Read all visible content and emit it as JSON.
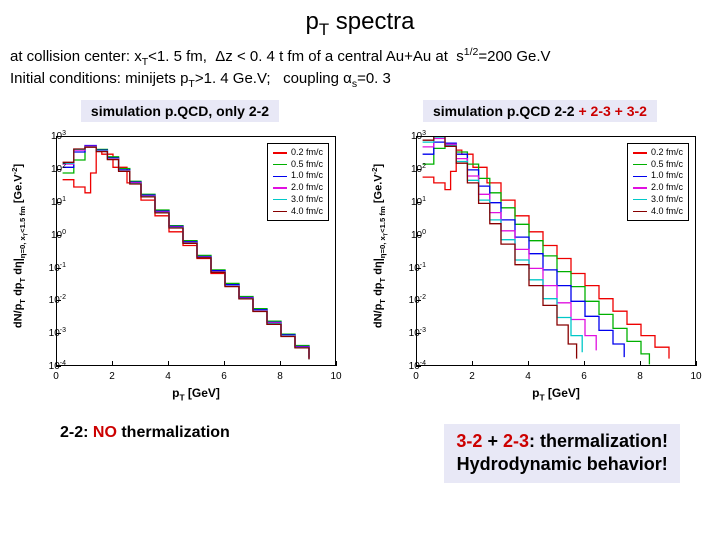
{
  "title_pre": "p",
  "title_sub": "T",
  "title_post": " spectra",
  "subtitle_line1": "at collision center: x_T<1. 5 fm,  Δz < 0. 4 t fm of a central Au+Au at  s^1/2=200 Ge.V",
  "subtitle_line2": "Initial conditions: minijets p_T>1. 4 Ge.V;   coupling α_s=0. 3",
  "left_chart": {
    "heading": "simulation p.QCD, only 2-2",
    "ylabel": "dN/p_T dp_T dη|_{η=0, x_T<1.5 fm} [Ge.V^{-2}]",
    "xlabel": "p_T [GeV]",
    "xlim": [
      0,
      10
    ],
    "ylim_exp": [
      -4,
      3
    ],
    "xticks": [
      0,
      2,
      4,
      6,
      8,
      10
    ],
    "yticks_exp": [
      -4,
      -3,
      -2,
      -1,
      0,
      1,
      2,
      3
    ],
    "legend": [
      {
        "label": "0.2 fm/c",
        "color": "#ee0000"
      },
      {
        "label": "0.5 fm/c",
        "color": "#00b000"
      },
      {
        "label": "1.0 fm/c",
        "color": "#0000ee"
      },
      {
        "label": "2.0 fm/c",
        "color": "#e010e0"
      },
      {
        "label": "3.0 fm/c",
        "color": "#00c8c8"
      },
      {
        "label": "4.0 fm/c",
        "color": "#880000"
      }
    ],
    "series": [
      {
        "color": "#ee0000",
        "points": [
          [
            0.2,
            50
          ],
          [
            0.6,
            30
          ],
          [
            1.0,
            20
          ],
          [
            1.2,
            80
          ],
          [
            1.4,
            400
          ],
          [
            1.6,
            300
          ],
          [
            2.0,
            120
          ],
          [
            2.5,
            40
          ],
          [
            3.0,
            12
          ],
          [
            3.5,
            4
          ],
          [
            4.0,
            1.3
          ],
          [
            4.5,
            0.5
          ],
          [
            5.0,
            0.2
          ],
          [
            5.5,
            0.07
          ],
          [
            6.0,
            0.03
          ],
          [
            6.5,
            0.012
          ],
          [
            7.0,
            0.005
          ],
          [
            7.5,
            0.002
          ],
          [
            8.0,
            0.0009
          ],
          [
            8.5,
            0.0004
          ],
          [
            9.0,
            0.00018
          ]
        ]
      },
      {
        "color": "#00b000",
        "points": [
          [
            0.2,
            80
          ],
          [
            0.6,
            200
          ],
          [
            1.0,
            500
          ],
          [
            1.4,
            420
          ],
          [
            1.8,
            250
          ],
          [
            2.2,
            110
          ],
          [
            2.6,
            45
          ],
          [
            3.0,
            18
          ],
          [
            3.5,
            6
          ],
          [
            4.0,
            2
          ],
          [
            4.5,
            0.7
          ],
          [
            5.0,
            0.25
          ],
          [
            5.5,
            0.09
          ],
          [
            6.0,
            0.035
          ],
          [
            6.5,
            0.014
          ],
          [
            7.0,
            0.006
          ],
          [
            7.5,
            0.0025
          ],
          [
            8.0,
            0.001
          ],
          [
            8.5,
            0.00045
          ],
          [
            9.0,
            0.0002
          ]
        ]
      },
      {
        "color": "#0000ee",
        "points": [
          [
            0.2,
            120
          ],
          [
            0.6,
            350
          ],
          [
            1.0,
            550
          ],
          [
            1.4,
            400
          ],
          [
            1.8,
            230
          ],
          [
            2.2,
            100
          ],
          [
            2.6,
            42
          ],
          [
            3.0,
            17
          ],
          [
            3.5,
            5.5
          ],
          [
            4.0,
            1.9
          ],
          [
            4.5,
            0.65
          ],
          [
            5.0,
            0.23
          ],
          [
            5.5,
            0.085
          ],
          [
            6.0,
            0.032
          ],
          [
            6.5,
            0.013
          ],
          [
            7.0,
            0.0055
          ],
          [
            7.5,
            0.0023
          ],
          [
            8.0,
            0.00095
          ],
          [
            8.5,
            0.00042
          ],
          [
            9.0,
            0.00019
          ]
        ]
      },
      {
        "color": "#e010e0",
        "points": [
          [
            0.2,
            150
          ],
          [
            0.6,
            400
          ],
          [
            1.0,
            520
          ],
          [
            1.4,
            380
          ],
          [
            1.8,
            220
          ],
          [
            2.2,
            95
          ],
          [
            2.6,
            40
          ],
          [
            3.0,
            16
          ],
          [
            3.5,
            5.2
          ],
          [
            4.0,
            1.8
          ],
          [
            4.5,
            0.62
          ],
          [
            5.0,
            0.22
          ],
          [
            5.5,
            0.08
          ],
          [
            6.0,
            0.03
          ],
          [
            6.5,
            0.0125
          ],
          [
            7.0,
            0.0052
          ],
          [
            7.5,
            0.0022
          ],
          [
            8.0,
            0.0009
          ],
          [
            8.5,
            0.0004
          ],
          [
            9.0,
            0.00018
          ]
        ]
      },
      {
        "color": "#00c8c8",
        "points": [
          [
            0.2,
            160
          ],
          [
            0.6,
            420
          ],
          [
            1.0,
            500
          ],
          [
            1.4,
            370
          ],
          [
            1.8,
            210
          ],
          [
            2.2,
            92
          ],
          [
            2.6,
            38
          ],
          [
            3.0,
            15.5
          ],
          [
            3.5,
            5
          ],
          [
            4.0,
            1.75
          ],
          [
            4.5,
            0.6
          ],
          [
            5.0,
            0.215
          ],
          [
            5.5,
            0.078
          ],
          [
            6.0,
            0.029
          ],
          [
            6.5,
            0.012
          ],
          [
            7.0,
            0.005
          ],
          [
            7.5,
            0.0021
          ],
          [
            8.0,
            0.00088
          ],
          [
            8.5,
            0.00039
          ],
          [
            9.0,
            0.00017
          ]
        ]
      },
      {
        "color": "#880000",
        "points": [
          [
            0.2,
            170
          ],
          [
            0.6,
            430
          ],
          [
            1.0,
            490
          ],
          [
            1.4,
            360
          ],
          [
            1.8,
            205
          ],
          [
            2.2,
            90
          ],
          [
            2.6,
            37
          ],
          [
            3.0,
            15
          ],
          [
            3.5,
            4.9
          ],
          [
            4.0,
            1.7
          ],
          [
            4.5,
            0.58
          ],
          [
            5.0,
            0.21
          ],
          [
            5.5,
            0.076
          ],
          [
            6.0,
            0.028
          ],
          [
            6.5,
            0.0118
          ],
          [
            7.0,
            0.0049
          ],
          [
            7.5,
            0.002
          ],
          [
            8.0,
            0.00085
          ],
          [
            8.5,
            0.00038
          ],
          [
            9.0,
            0.00017
          ]
        ]
      }
    ]
  },
  "right_chart": {
    "heading_parts": [
      {
        "text": "simulation p.QCD 2-2 ",
        "color": "#000000"
      },
      {
        "text": "+ 2-3 ",
        "color": "#cc0000"
      },
      {
        "text": "+ 3-2",
        "color": "#cc0000"
      }
    ],
    "ylabel": "dN/p_T dp_T dη|_{η=0, x_T<1.5 fm} [Ge.V^{-2}]",
    "xlabel": "p_T [GeV]",
    "xlim": [
      0,
      10
    ],
    "ylim_exp": [
      -4,
      3
    ],
    "xticks": [
      0,
      2,
      4,
      6,
      8,
      10
    ],
    "yticks_exp": [
      -4,
      -3,
      -2,
      -1,
      0,
      1,
      2,
      3
    ],
    "legend": [
      {
        "label": "0.2 fm/c",
        "color": "#ee0000"
      },
      {
        "label": "0.5 fm/c",
        "color": "#00b000"
      },
      {
        "label": "1.0 fm/c",
        "color": "#0000ee"
      },
      {
        "label": "2.0 fm/c",
        "color": "#e010e0"
      },
      {
        "label": "3.0 fm/c",
        "color": "#00c8c8"
      },
      {
        "label": "4.0 fm/c",
        "color": "#880000"
      }
    ],
    "series": [
      {
        "color": "#ee0000",
        "points": [
          [
            0.2,
            60
          ],
          [
            0.6,
            40
          ],
          [
            1.0,
            25
          ],
          [
            1.2,
            90
          ],
          [
            1.4,
            400
          ],
          [
            1.6,
            300
          ],
          [
            2.0,
            120
          ],
          [
            2.5,
            40
          ],
          [
            3.0,
            12
          ],
          [
            3.5,
            4
          ],
          [
            4.0,
            1.3
          ],
          [
            4.5,
            0.5
          ],
          [
            5.0,
            0.2
          ],
          [
            5.5,
            0.07
          ],
          [
            6.0,
            0.03
          ],
          [
            6.5,
            0.012
          ],
          [
            7.0,
            0.005
          ],
          [
            7.5,
            0.002
          ],
          [
            8.0,
            0.0009
          ],
          [
            8.5,
            0.0004
          ],
          [
            9.0,
            0.00018
          ]
        ]
      },
      {
        "color": "#00b000",
        "points": [
          [
            0.2,
            150
          ],
          [
            0.6,
            450
          ],
          [
            1.0,
            600
          ],
          [
            1.4,
            350
          ],
          [
            1.8,
            150
          ],
          [
            2.2,
            55
          ],
          [
            2.6,
            20
          ],
          [
            3.0,
            7
          ],
          [
            3.5,
            2.2
          ],
          [
            4.0,
            0.7
          ],
          [
            4.5,
            0.24
          ],
          [
            5.0,
            0.08
          ],
          [
            5.5,
            0.028
          ],
          [
            6.0,
            0.01
          ],
          [
            6.5,
            0.004
          ],
          [
            7.0,
            0.0015
          ],
          [
            7.5,
            0.0006
          ],
          [
            8.0,
            0.00025
          ],
          [
            8.3,
            0.00012
          ]
        ]
      },
      {
        "color": "#0000ee",
        "points": [
          [
            0.2,
            300
          ],
          [
            0.6,
            700
          ],
          [
            1.0,
            650
          ],
          [
            1.4,
            300
          ],
          [
            1.8,
            100
          ],
          [
            2.2,
            32
          ],
          [
            2.6,
            10
          ],
          [
            3.0,
            3
          ],
          [
            3.5,
            0.9
          ],
          [
            4.0,
            0.28
          ],
          [
            4.5,
            0.09
          ],
          [
            5.0,
            0.03
          ],
          [
            5.5,
            0.01
          ],
          [
            6.0,
            0.0035
          ],
          [
            6.5,
            0.0013
          ],
          [
            7.0,
            0.0005
          ],
          [
            7.4,
            0.0002
          ]
        ]
      },
      {
        "color": "#e010e0",
        "points": [
          [
            0.2,
            500
          ],
          [
            0.6,
            900
          ],
          [
            1.0,
            600
          ],
          [
            1.4,
            220
          ],
          [
            1.8,
            65
          ],
          [
            2.2,
            18
          ],
          [
            2.6,
            5
          ],
          [
            3.0,
            1.4
          ],
          [
            3.5,
            0.38
          ],
          [
            4.0,
            0.1
          ],
          [
            4.5,
            0.03
          ],
          [
            5.0,
            0.009
          ],
          [
            5.5,
            0.0028
          ],
          [
            6.0,
            0.0009
          ],
          [
            6.4,
            0.00032
          ]
        ]
      },
      {
        "color": "#00c8c8",
        "points": [
          [
            0.2,
            700
          ],
          [
            0.6,
            1000
          ],
          [
            1.0,
            550
          ],
          [
            1.4,
            180
          ],
          [
            1.8,
            48
          ],
          [
            2.2,
            12
          ],
          [
            2.6,
            3
          ],
          [
            3.0,
            0.75
          ],
          [
            3.5,
            0.18
          ],
          [
            4.0,
            0.045
          ],
          [
            4.5,
            0.012
          ],
          [
            5.0,
            0.0032
          ],
          [
            5.5,
            0.0009
          ],
          [
            5.9,
            0.00028
          ]
        ]
      },
      {
        "color": "#880000",
        "points": [
          [
            0.2,
            800
          ],
          [
            0.6,
            1050
          ],
          [
            1.0,
            520
          ],
          [
            1.4,
            160
          ],
          [
            1.8,
            40
          ],
          [
            2.2,
            9.5
          ],
          [
            2.6,
            2.3
          ],
          [
            3.0,
            0.55
          ],
          [
            3.5,
            0.13
          ],
          [
            4.0,
            0.03
          ],
          [
            4.5,
            0.0075
          ],
          [
            5.0,
            0.0019
          ],
          [
            5.4,
            0.0005
          ],
          [
            5.7,
            0.00018
          ]
        ]
      }
    ]
  },
  "bottom_left": {
    "prefix": "2-2:    ",
    "red": "NO",
    "suffix": " thermalization"
  },
  "bottom_right": {
    "l1_red1": "3-2 ",
    "l1_plus": "+ ",
    "l1_red2": "2-3",
    "l1_black": ": thermalization!",
    "l2": "Hydrodynamic behavior!"
  },
  "colors": {
    "red_text": "#cc0000",
    "panel_bg": "#e8e8f6"
  }
}
